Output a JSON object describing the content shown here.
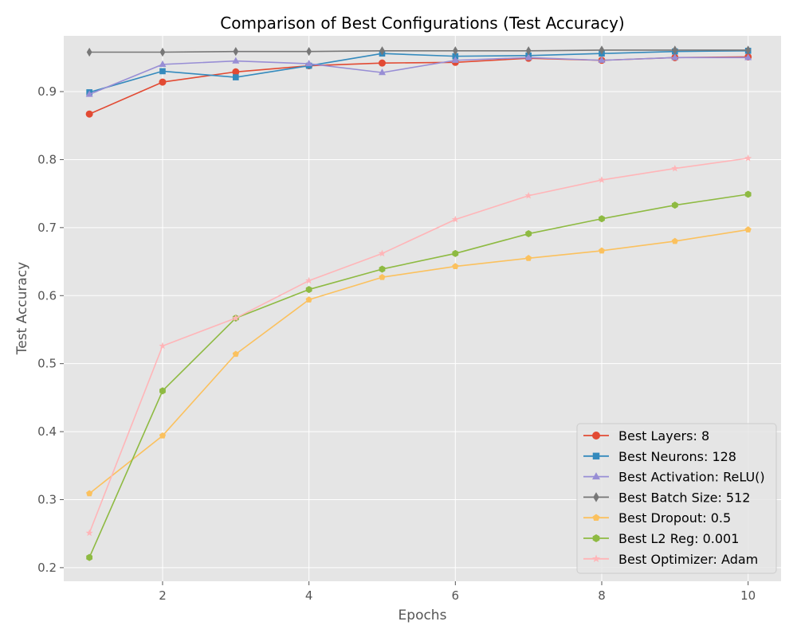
{
  "chart_data": {
    "type": "line",
    "title": "Comparison of Best Configurations (Test Accuracy)",
    "xlabel": "Epochs",
    "ylabel": "Test Accuracy",
    "xlim": [
      0.65,
      10.45
    ],
    "ylim": [
      0.18,
      0.982
    ],
    "xticks": [
      2,
      4,
      6,
      8,
      10
    ],
    "yticks": [
      0.2,
      0.3,
      0.4,
      0.5,
      0.6,
      0.7,
      0.8,
      0.9
    ],
    "ytick_labels": [
      "0.2",
      "0.3",
      "0.4",
      "0.5",
      "0.6",
      "0.7",
      "0.8",
      "0.9"
    ],
    "grid": true,
    "legend_position": "lower-right",
    "x": [
      1,
      2,
      3,
      4,
      5,
      6,
      7,
      8,
      9,
      10
    ],
    "series": [
      {
        "name": "Best Layers: 8",
        "color": "#E24A33",
        "marker": "circle",
        "values": [
          0.867,
          0.914,
          0.929,
          0.938,
          0.942,
          0.943,
          0.949,
          0.946,
          0.95,
          0.951
        ]
      },
      {
        "name": "Best Neurons: 128",
        "color": "#348ABD",
        "marker": "square",
        "values": [
          0.899,
          0.93,
          0.921,
          0.938,
          0.956,
          0.952,
          0.953,
          0.956,
          0.959,
          0.96
        ]
      },
      {
        "name": "Best Activation: ReLU()",
        "color": "#988ED5",
        "marker": "triangle",
        "values": [
          0.896,
          0.94,
          0.945,
          0.941,
          0.928,
          0.946,
          0.95,
          0.946,
          0.95,
          0.95
        ]
      },
      {
        "name": "Best Batch Size: 512",
        "color": "#777777",
        "marker": "diamond",
        "values": [
          0.958,
          0.958,
          0.959,
          0.959,
          0.96,
          0.96,
          0.96,
          0.961,
          0.961,
          0.961
        ]
      },
      {
        "name": "Best Dropout: 0.5",
        "color": "#FBC15E",
        "marker": "pentagon",
        "values": [
          0.309,
          0.394,
          0.514,
          0.594,
          0.627,
          0.643,
          0.655,
          0.666,
          0.68,
          0.697
        ]
      },
      {
        "name": "Best L2 Reg: 0.001",
        "color": "#8EBA42",
        "marker": "hexagon",
        "values": [
          0.215,
          0.46,
          0.567,
          0.609,
          0.639,
          0.662,
          0.691,
          0.713,
          0.733,
          0.749
        ]
      },
      {
        "name": "Best Optimizer: Adam",
        "color": "#FFB5B8",
        "marker": "star",
        "values": [
          0.251,
          0.526,
          0.567,
          0.622,
          0.662,
          0.712,
          0.747,
          0.77,
          0.787,
          0.802
        ]
      }
    ]
  }
}
